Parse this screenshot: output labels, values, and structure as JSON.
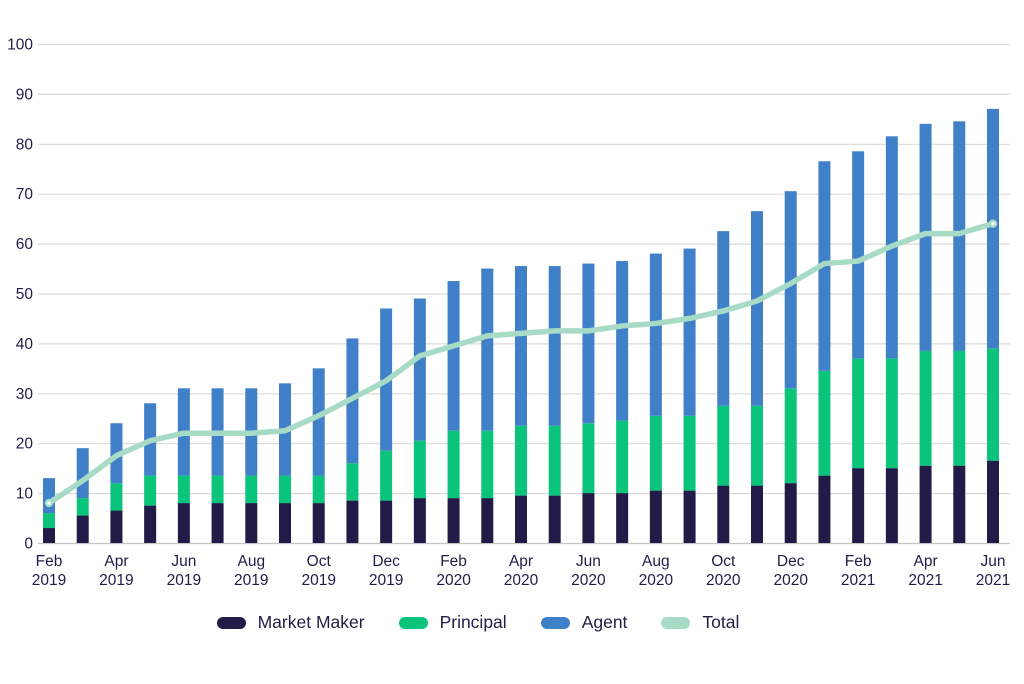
{
  "chart_data": {
    "type": "bar",
    "stacked": true,
    "title": "",
    "xlabel": "",
    "ylabel": "",
    "ylim": [
      0,
      100
    ],
    "yticks": [
      0,
      10,
      20,
      30,
      40,
      50,
      60,
      70,
      80,
      90,
      100
    ],
    "grid": true,
    "legend_position": "bottom",
    "x_label_every": 2,
    "categories": [
      "Feb 2019",
      "Mar 2019",
      "Apr 2019",
      "May 2019",
      "Jun 2019",
      "Jul 2019",
      "Aug 2019",
      "Sep 2019",
      "Oct 2019",
      "Nov 2019",
      "Dec 2019",
      "Jan 2020",
      "Feb 2020",
      "Mar 2020",
      "Apr 2020",
      "May 2020",
      "Jun 2020",
      "Jul 2020",
      "Aug 2020",
      "Sep 2020",
      "Oct 2020",
      "Nov 2020",
      "Dec 2020",
      "Jan 2021",
      "Feb 2021",
      "Mar 2021",
      "Apr 2021",
      "May 2021",
      "Jun 2021"
    ],
    "series": [
      {
        "name": "Market Maker",
        "type": "bar",
        "color": "#211b47",
        "values": [
          3,
          5.5,
          6.5,
          7.5,
          8,
          8,
          8,
          8,
          8,
          8.5,
          8.5,
          9,
          9,
          9,
          9.5,
          9.5,
          10,
          10,
          10.5,
          10.5,
          11.5,
          11.5,
          12,
          13.5,
          15,
          15,
          15.5,
          15.5,
          16.5
        ]
      },
      {
        "name": "Principal",
        "type": "bar",
        "color": "#0bc47c",
        "values": [
          3,
          3.5,
          5.5,
          6,
          5.5,
          5.5,
          5.5,
          5.5,
          5.5,
          7.5,
          10,
          11.5,
          13.5,
          13.5,
          14,
          14,
          14,
          14.5,
          15,
          15,
          16,
          16,
          19,
          21,
          22,
          22,
          23,
          23,
          22.5
        ]
      },
      {
        "name": "Agent",
        "type": "bar",
        "color": "#4080c8",
        "values": [
          7,
          10,
          12,
          14.5,
          17.5,
          17.5,
          17.5,
          18.5,
          21.5,
          25,
          28.5,
          28.5,
          30,
          32.5,
          32,
          32,
          32,
          32,
          32.5,
          33.5,
          35,
          39,
          39.5,
          42,
          41.5,
          44.5,
          45.5,
          46,
          48
        ]
      },
      {
        "name": "Total",
        "type": "line",
        "color": "#a8dbc5",
        "values": [
          8,
          12.5,
          17.5,
          20.5,
          22,
          22,
          22,
          22.5,
          25.5,
          29,
          32.5,
          37.5,
          39.5,
          41.5,
          42,
          42.5,
          42.5,
          43.5,
          44,
          45,
          46.5,
          48.5,
          52,
          56,
          56.5,
          59.5,
          62,
          62,
          64
        ]
      }
    ],
    "colors": {
      "axis_text": "#221c46",
      "gridline": "#d9d9d9",
      "baseline": "#c4c4c4",
      "background": "#ffffff",
      "line_marker_fill": "#ffffff"
    }
  },
  "legend": {
    "items": [
      {
        "label": "Market Maker",
        "color": "#211b47"
      },
      {
        "label": "Principal",
        "color": "#0bc47c"
      },
      {
        "label": "Agent",
        "color": "#4080c8"
      },
      {
        "label": "Total",
        "color": "#a8dbc5"
      }
    ]
  }
}
